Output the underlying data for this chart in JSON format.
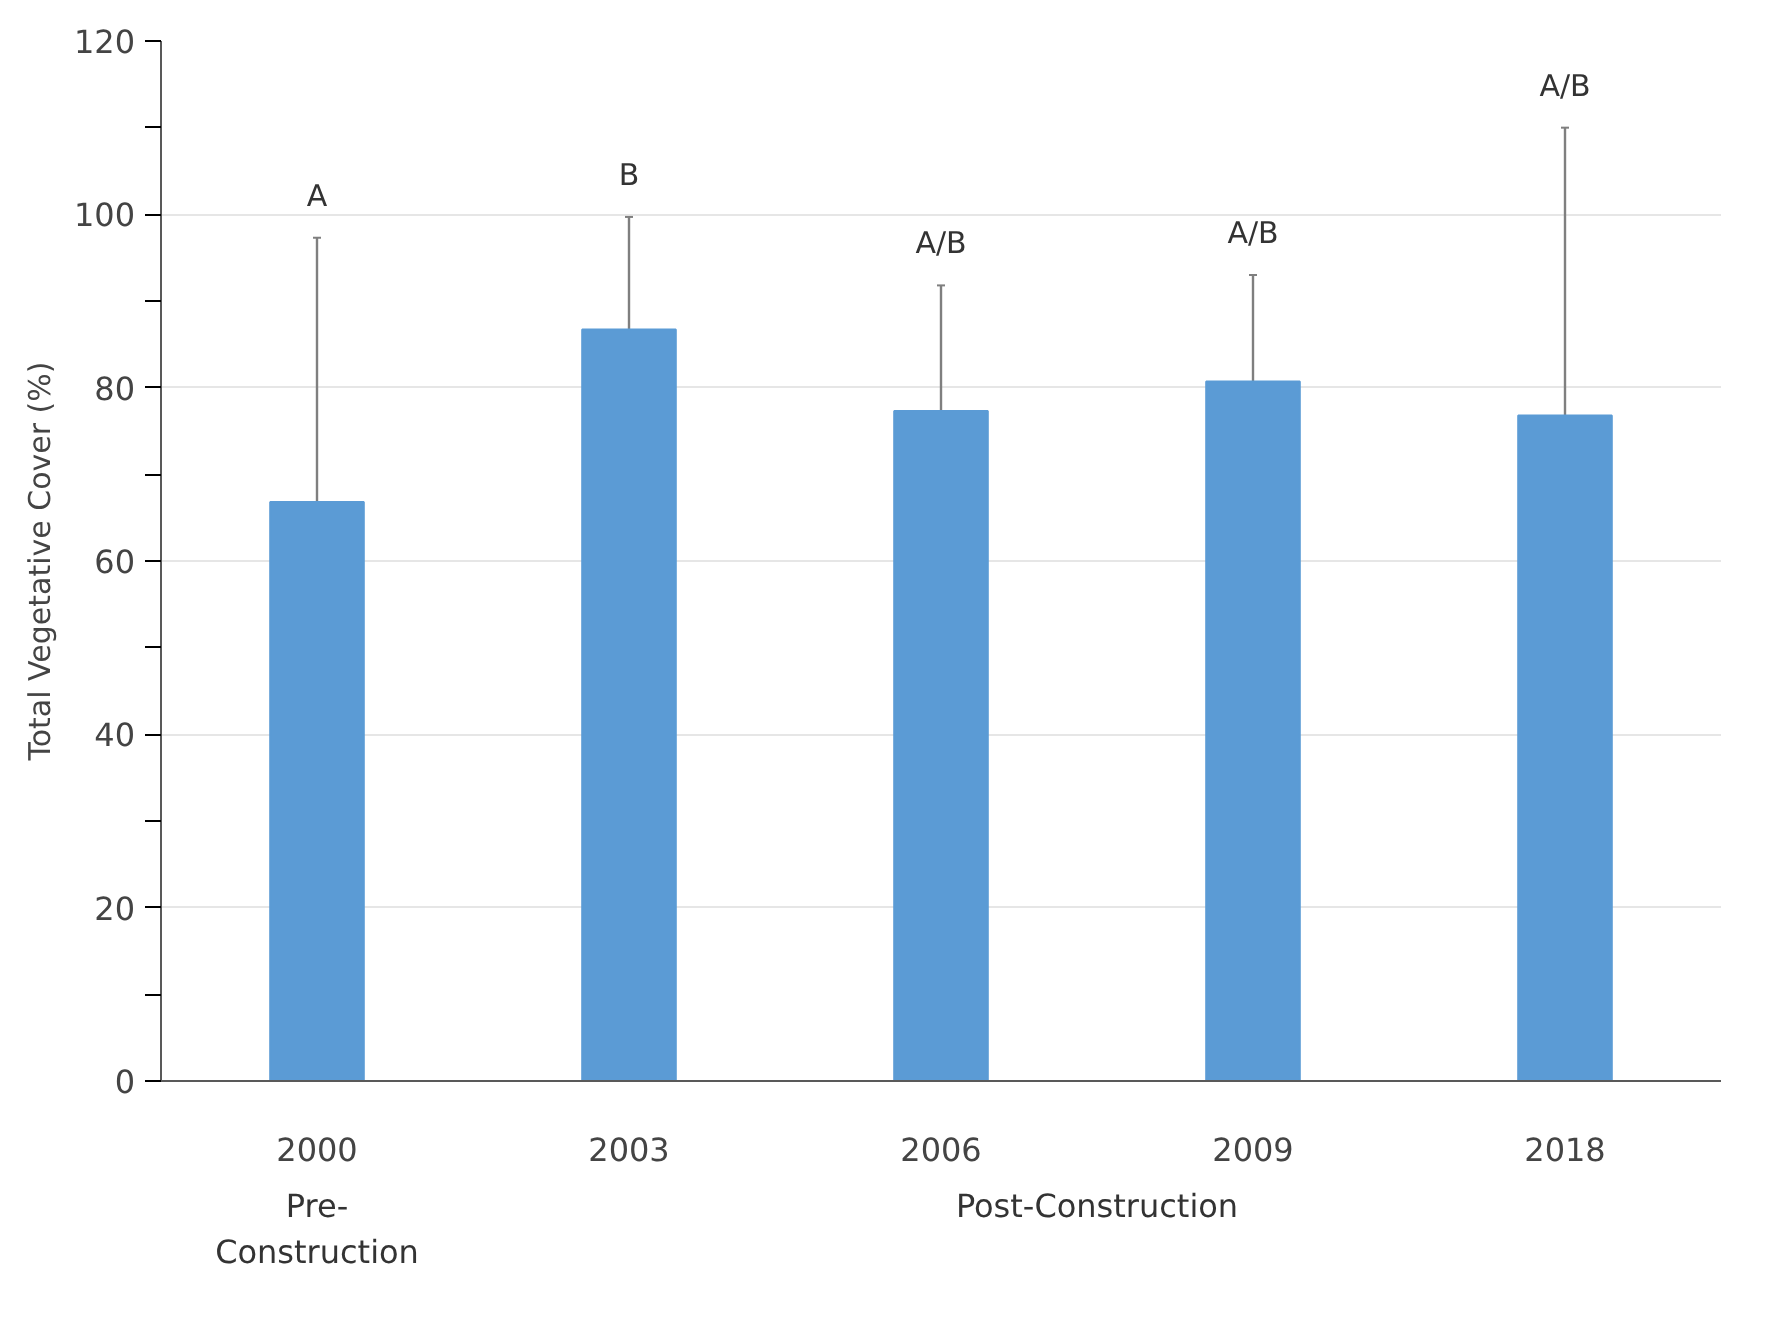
{
  "chart_data": {
    "type": "bar",
    "categories": [
      "2000",
      "2003",
      "2006",
      "2009",
      "2018"
    ],
    "values": [
      66.8,
      86.7,
      77.3,
      80.7,
      76.8
    ],
    "errors": [
      30.5,
      13,
      14.5,
      12.3,
      33.2
    ],
    "color": "#5b9bd5",
    "ylabel": "Total Vegetative Cover (%)",
    "ylim": [
      0,
      120
    ],
    "yticks": [
      0,
      {
        "value": 10,
        "label": null
      },
      20,
      {
        "value": 30,
        "label": null
      },
      40,
      {
        "value": 50,
        "label": null
      },
      60,
      {
        "value": 70,
        "label": null
      },
      80,
      {
        "value": 90,
        "label": null
      },
      100,
      {
        "value": 110,
        "label": null
      },
      120
    ],
    "grid": "y",
    "annotations": [
      "A",
      "B",
      "A/B",
      "A/B",
      "A/B",
      "Pre-\nConstruction",
      "Post-Construction"
    ]
  }
}
